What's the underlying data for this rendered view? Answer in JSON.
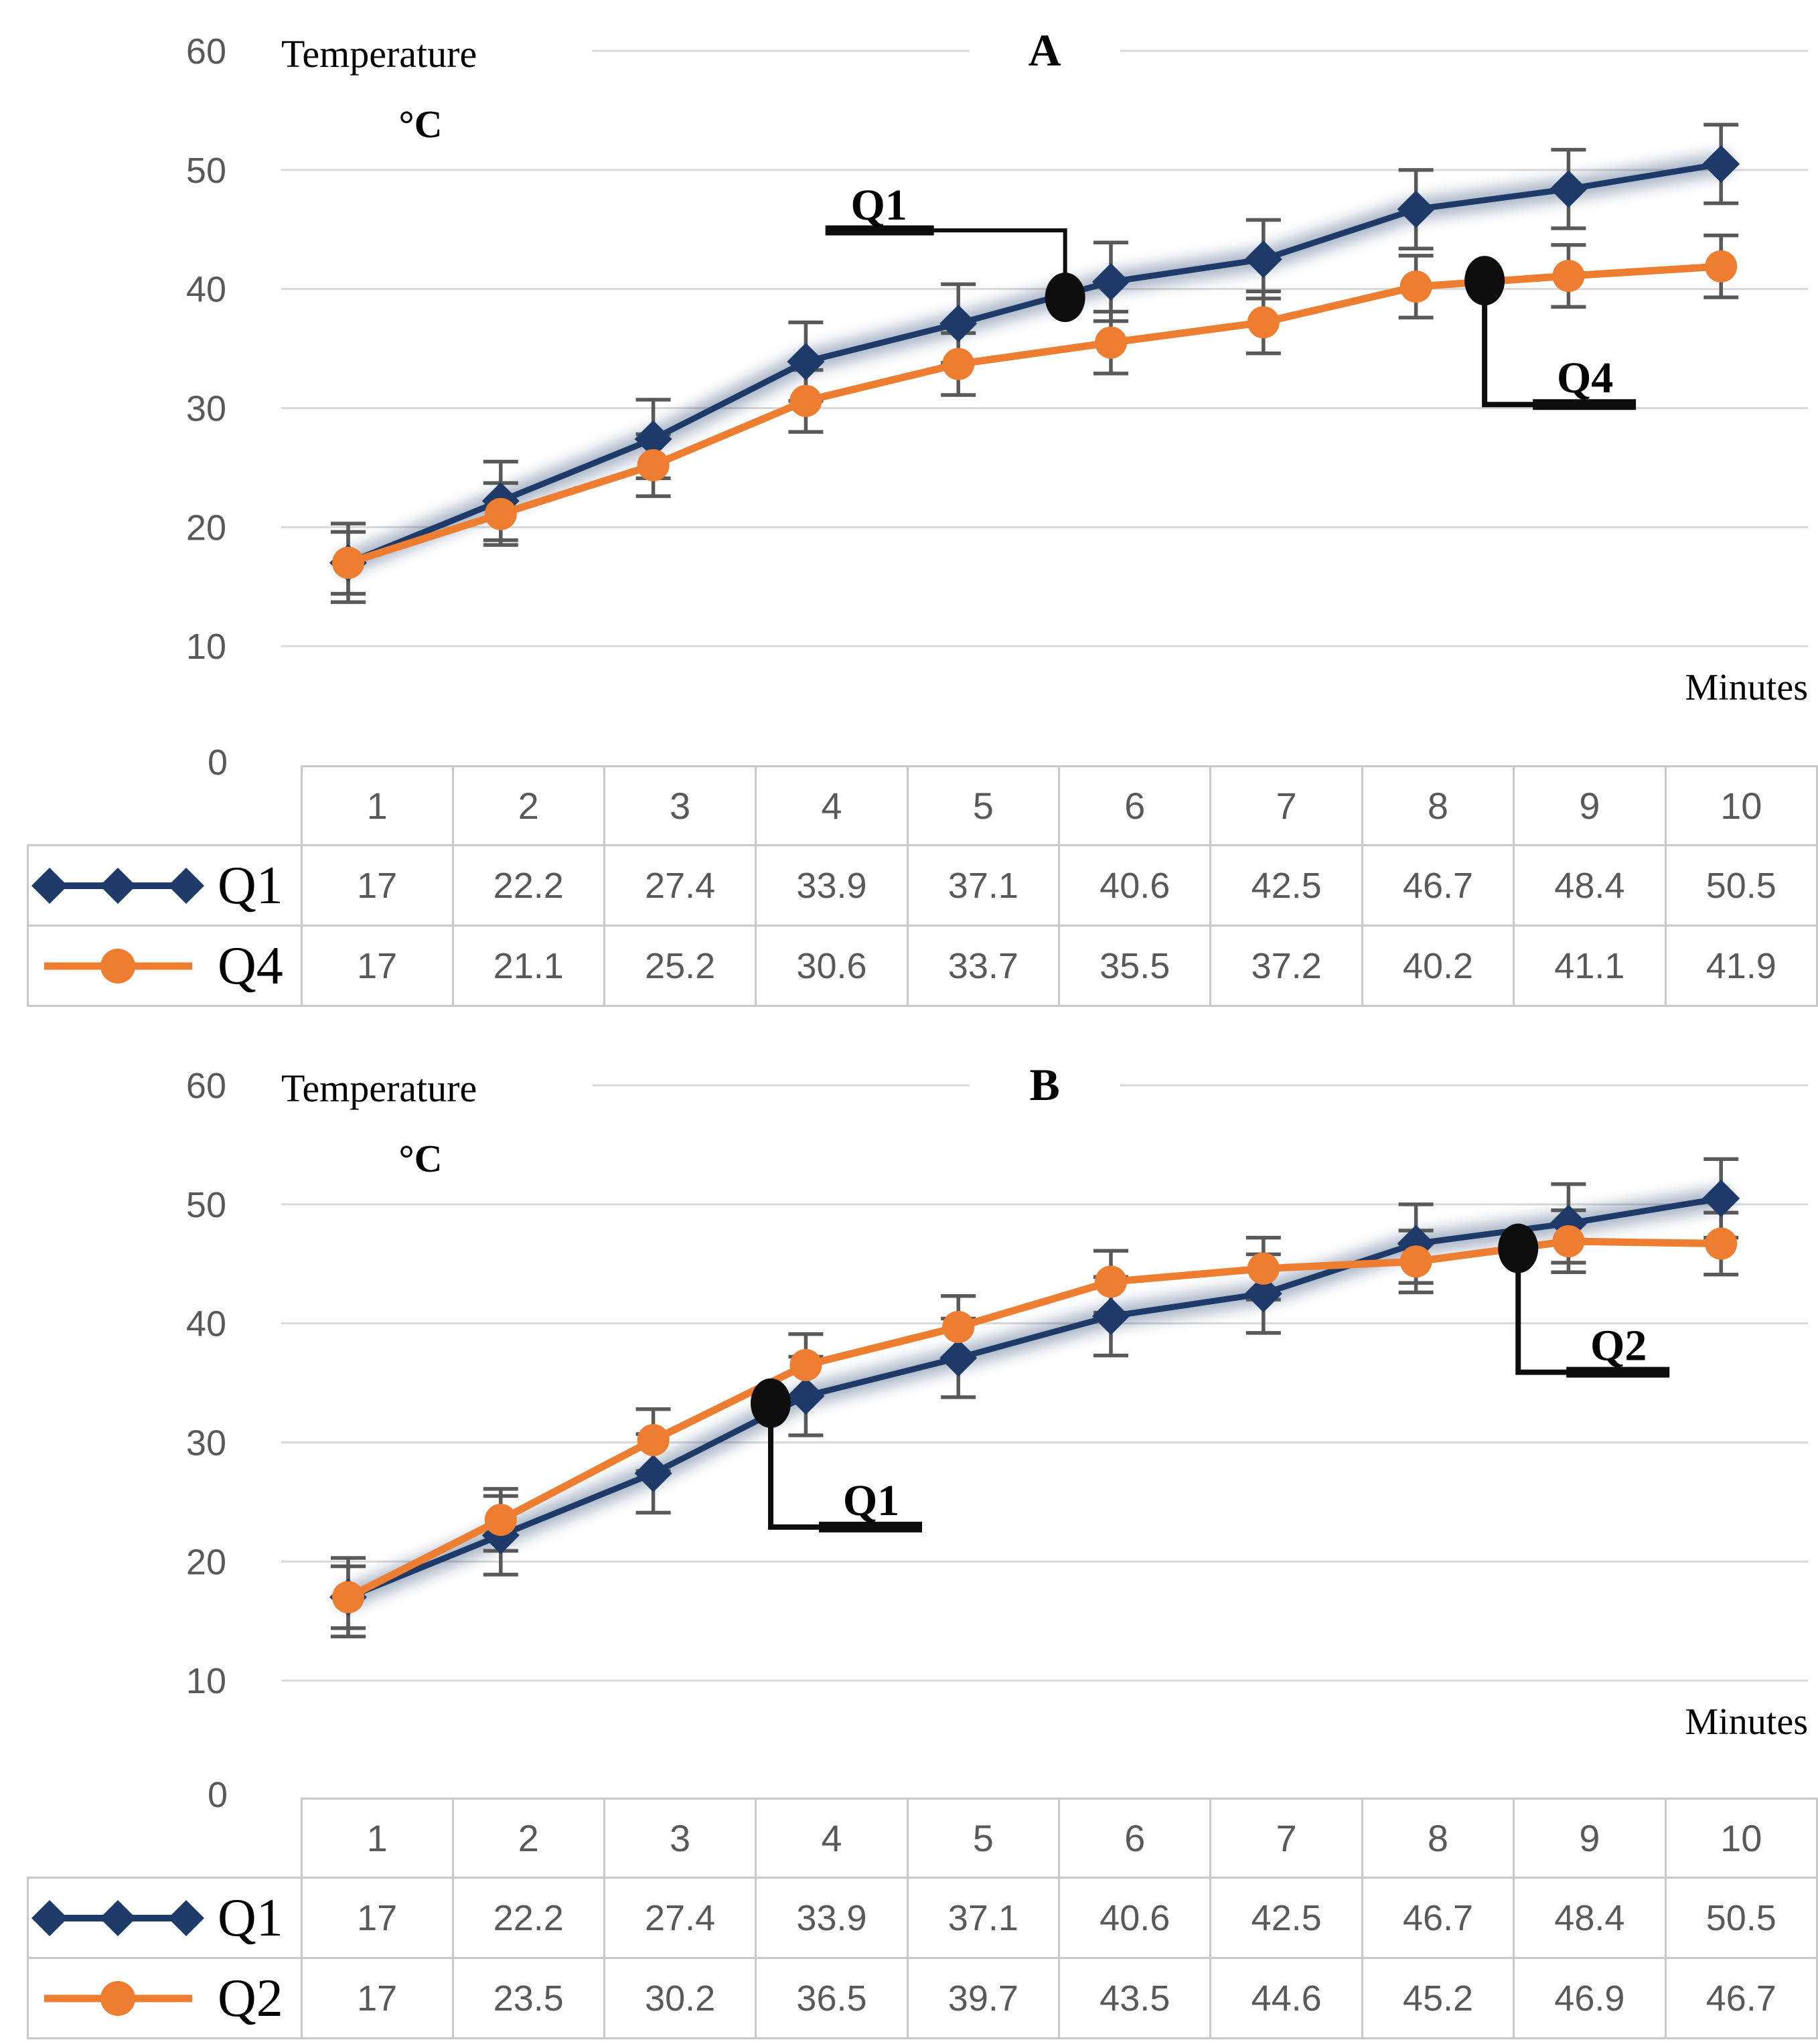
{
  "page_background": "#ffffff",
  "colors": {
    "q1_navy": "#1d3a68",
    "orange": "#ED7D31",
    "error_bar_gray": "#595959",
    "gridline_gray": "#d9d9d9",
    "table_border_gray": "#c9c9c9",
    "axis_text_gray": "#595959",
    "annotation_black": "#0d0d0d"
  },
  "y_axis": {
    "title_line1": "Temperature",
    "title_line2": "°C",
    "ticks": [
      "60",
      "50",
      "40",
      "30",
      "20",
      "10"
    ],
    "zero_label": "0",
    "max": 60,
    "min": 0,
    "step": 10
  },
  "x_axis": {
    "label": "Minutes",
    "categories": [
      "1",
      "2",
      "3",
      "4",
      "5",
      "6",
      "7",
      "8",
      "9",
      "10"
    ]
  },
  "chart_data": [
    {
      "type": "line",
      "title": "A",
      "xlabel": "Minutes",
      "ylabel": "Temperature °C",
      "ylim": [
        0,
        60
      ],
      "grid": true,
      "legend_position": "table-left",
      "x": [
        1,
        2,
        3,
        4,
        5,
        6,
        7,
        8,
        9,
        10
      ],
      "series": [
        {
          "name": "Q1",
          "color": "#1d3a68",
          "marker": "diamond",
          "glow": true,
          "error_bar": 3.3,
          "values": [
            17,
            22.2,
            27.4,
            33.9,
            37.1,
            40.6,
            42.5,
            46.7,
            48.4,
            50.5
          ]
        },
        {
          "name": "Q4",
          "color": "#ED7D31",
          "marker": "circle",
          "glow": false,
          "error_bar": 2.6,
          "values": [
            17,
            21.1,
            25.2,
            30.6,
            33.7,
            35.5,
            37.2,
            40.2,
            41.1,
            41.9
          ]
        }
      ],
      "annotations": [
        {
          "label": "Q1",
          "minute": 5.7,
          "value": 39.3,
          "side": "above-left"
        },
        {
          "label": "Q4",
          "minute": 8.45,
          "value": 40.7,
          "side": "below-right"
        }
      ]
    },
    {
      "type": "line",
      "title": "B",
      "xlabel": "Minutes",
      "ylabel": "Temperature °C",
      "ylim": [
        0,
        60
      ],
      "grid": true,
      "legend_position": "table-left",
      "x": [
        1,
        2,
        3,
        4,
        5,
        6,
        7,
        8,
        9,
        10
      ],
      "series": [
        {
          "name": "Q1",
          "color": "#1d3a68",
          "marker": "diamond",
          "glow": true,
          "error_bar": 3.3,
          "values": [
            17,
            22.2,
            27.4,
            33.9,
            37.1,
            40.6,
            42.5,
            46.7,
            48.4,
            50.5
          ]
        },
        {
          "name": "Q2",
          "color": "#ED7D31",
          "marker": "circle",
          "glow": false,
          "error_bar": 2.6,
          "values": [
            17,
            23.5,
            30.2,
            36.5,
            39.7,
            43.5,
            44.6,
            45.2,
            46.9,
            46.7
          ]
        }
      ],
      "annotations": [
        {
          "label": "Q1",
          "minute": 3.77,
          "value": 33.3,
          "side": "below-right"
        },
        {
          "label": "Q2",
          "minute": 8.67,
          "value": 46.3,
          "side": "below-right"
        }
      ]
    }
  ]
}
